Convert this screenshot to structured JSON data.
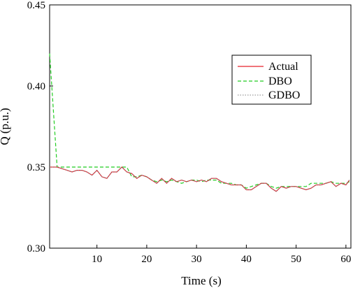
{
  "chart_data": {
    "type": "line",
    "xlabel": "Time (s)",
    "ylabel": "Q (p.u.)",
    "xlim": [
      0.5,
      61
    ],
    "ylim": [
      0.3,
      0.45
    ],
    "x_ticks": [
      10,
      20,
      30,
      40,
      50,
      60
    ],
    "x_tick_labels": [
      "10",
      "20",
      "30",
      "40",
      "50",
      "60"
    ],
    "y_ticks": [
      0.3,
      0.35,
      0.4,
      0.45
    ],
    "y_tick_labels": [
      "0.30",
      "0.35",
      "0.40",
      "0.45"
    ],
    "grid": false,
    "legend_position": "upper-right",
    "series": [
      {
        "name": "Actual",
        "color": "#e8202a",
        "style": "solid",
        "points": [
          [
            0.5,
            0.35
          ],
          [
            2,
            0.35
          ],
          [
            3,
            0.349
          ],
          [
            4,
            0.348
          ],
          [
            5,
            0.347
          ],
          [
            6,
            0.348
          ],
          [
            7,
            0.348
          ],
          [
            8,
            0.347
          ],
          [
            9,
            0.345
          ],
          [
            10,
            0.348
          ],
          [
            11,
            0.344
          ],
          [
            12,
            0.343
          ],
          [
            13,
            0.347
          ],
          [
            14,
            0.347
          ],
          [
            15,
            0.35
          ],
          [
            16,
            0.347
          ],
          [
            17,
            0.346
          ],
          [
            18,
            0.343
          ],
          [
            19,
            0.345
          ],
          [
            20,
            0.344
          ],
          [
            21,
            0.342
          ],
          [
            22,
            0.34
          ],
          [
            23,
            0.343
          ],
          [
            24,
            0.34
          ],
          [
            25,
            0.343
          ],
          [
            26,
            0.341
          ],
          [
            27,
            0.342
          ],
          [
            28,
            0.341
          ],
          [
            29,
            0.342
          ],
          [
            30,
            0.341
          ],
          [
            31,
            0.342
          ],
          [
            32,
            0.341
          ],
          [
            33,
            0.343
          ],
          [
            34,
            0.343
          ],
          [
            35,
            0.341
          ],
          [
            36,
            0.34
          ],
          [
            37,
            0.339
          ],
          [
            38,
            0.339
          ],
          [
            39,
            0.339
          ],
          [
            40,
            0.336
          ],
          [
            41,
            0.336
          ],
          [
            42,
            0.338
          ],
          [
            43,
            0.34
          ],
          [
            44,
            0.34
          ],
          [
            45,
            0.337
          ],
          [
            46,
            0.335
          ],
          [
            47,
            0.338
          ],
          [
            48,
            0.337
          ],
          [
            49,
            0.338
          ],
          [
            50,
            0.338
          ],
          [
            51,
            0.337
          ],
          [
            52,
            0.336
          ],
          [
            53,
            0.337
          ],
          [
            54,
            0.339
          ],
          [
            55,
            0.339
          ],
          [
            56,
            0.34
          ],
          [
            57,
            0.341
          ],
          [
            58,
            0.338
          ],
          [
            59,
            0.34
          ],
          [
            60,
            0.339
          ],
          [
            60.7,
            0.342
          ]
        ]
      },
      {
        "name": "DBO",
        "color": "#22cc22",
        "style": "dashed",
        "points": [
          [
            0.5,
            0.42
          ],
          [
            2,
            0.35
          ],
          [
            3,
            0.35
          ],
          [
            4,
            0.35
          ],
          [
            6,
            0.35
          ],
          [
            8,
            0.35
          ],
          [
            10,
            0.35
          ],
          [
            12,
            0.35
          ],
          [
            14,
            0.35
          ],
          [
            16,
            0.35
          ],
          [
            17,
            0.344
          ],
          [
            18,
            0.344
          ],
          [
            19,
            0.345
          ],
          [
            20,
            0.344
          ],
          [
            21,
            0.342
          ],
          [
            22,
            0.341
          ],
          [
            23,
            0.342
          ],
          [
            24,
            0.341
          ],
          [
            25,
            0.342
          ],
          [
            26,
            0.341
          ],
          [
            27,
            0.34
          ],
          [
            28,
            0.341
          ],
          [
            29,
            0.342
          ],
          [
            30,
            0.342
          ],
          [
            31,
            0.341
          ],
          [
            32,
            0.342
          ],
          [
            33,
            0.342
          ],
          [
            34,
            0.342
          ],
          [
            35,
            0.34
          ],
          [
            36,
            0.34
          ],
          [
            37,
            0.34
          ],
          [
            38,
            0.339
          ],
          [
            39,
            0.339
          ],
          [
            40,
            0.337
          ],
          [
            41,
            0.338
          ],
          [
            42,
            0.339
          ],
          [
            43,
            0.34
          ],
          [
            44,
            0.34
          ],
          [
            45,
            0.338
          ],
          [
            46,
            0.337
          ],
          [
            47,
            0.338
          ],
          [
            48,
            0.338
          ],
          [
            49,
            0.338
          ],
          [
            50,
            0.338
          ],
          [
            51,
            0.338
          ],
          [
            52,
            0.338
          ],
          [
            53,
            0.34
          ],
          [
            54,
            0.34
          ],
          [
            55,
            0.34
          ],
          [
            56,
            0.34
          ],
          [
            57,
            0.341
          ],
          [
            58,
            0.34
          ],
          [
            59,
            0.34
          ],
          [
            60,
            0.34
          ],
          [
            60.7,
            0.341
          ]
        ]
      },
      {
        "name": "GDBO",
        "color": "#808080",
        "style": "dotted",
        "points": [
          [
            0.5,
            0.35
          ],
          [
            2,
            0.35
          ],
          [
            3,
            0.349
          ],
          [
            4,
            0.348
          ],
          [
            5,
            0.347
          ],
          [
            6,
            0.348
          ],
          [
            7,
            0.348
          ],
          [
            8,
            0.347
          ],
          [
            9,
            0.345
          ],
          [
            10,
            0.348
          ],
          [
            11,
            0.344
          ],
          [
            12,
            0.343
          ],
          [
            13,
            0.347
          ],
          [
            14,
            0.347
          ],
          [
            15,
            0.35
          ],
          [
            16,
            0.347
          ],
          [
            17,
            0.346
          ],
          [
            18,
            0.343
          ],
          [
            19,
            0.345
          ],
          [
            20,
            0.344
          ],
          [
            21,
            0.342
          ],
          [
            22,
            0.34
          ],
          [
            23,
            0.343
          ],
          [
            24,
            0.34
          ],
          [
            25,
            0.343
          ],
          [
            26,
            0.341
          ],
          [
            27,
            0.342
          ],
          [
            28,
            0.341
          ],
          [
            29,
            0.342
          ],
          [
            30,
            0.341
          ],
          [
            31,
            0.342
          ],
          [
            32,
            0.341
          ],
          [
            33,
            0.343
          ],
          [
            34,
            0.343
          ],
          [
            35,
            0.341
          ],
          [
            36,
            0.34
          ],
          [
            37,
            0.339
          ],
          [
            38,
            0.339
          ],
          [
            39,
            0.339
          ],
          [
            40,
            0.336
          ],
          [
            41,
            0.336
          ],
          [
            42,
            0.338
          ],
          [
            43,
            0.34
          ],
          [
            44,
            0.34
          ],
          [
            45,
            0.337
          ],
          [
            46,
            0.335
          ],
          [
            47,
            0.338
          ],
          [
            48,
            0.337
          ],
          [
            49,
            0.338
          ],
          [
            50,
            0.338
          ],
          [
            51,
            0.337
          ],
          [
            52,
            0.336
          ],
          [
            53,
            0.337
          ],
          [
            54,
            0.339
          ],
          [
            55,
            0.339
          ],
          [
            56,
            0.34
          ],
          [
            57,
            0.341
          ],
          [
            58,
            0.338
          ],
          [
            59,
            0.34
          ],
          [
            60,
            0.339
          ],
          [
            60.7,
            0.342
          ]
        ]
      }
    ]
  }
}
